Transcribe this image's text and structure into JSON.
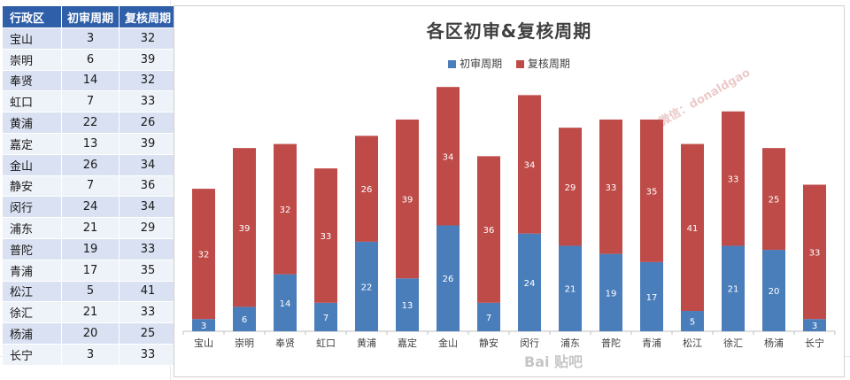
{
  "table": {
    "headers": [
      "行政区",
      "初审周期",
      "复核周期"
    ],
    "rows": [
      [
        "宝山",
        "3",
        "32"
      ],
      [
        "崇明",
        "6",
        "39"
      ],
      [
        "奉贤",
        "14",
        "32"
      ],
      [
        "虹口",
        "7",
        "33"
      ],
      [
        "黄浦",
        "22",
        "26"
      ],
      [
        "嘉定",
        "13",
        "39"
      ],
      [
        "金山",
        "26",
        "34"
      ],
      [
        "静安",
        "7",
        "36"
      ],
      [
        "闵行",
        "24",
        "34"
      ],
      [
        "浦东",
        "21",
        "29"
      ],
      [
        "普陀",
        "19",
        "33"
      ],
      [
        "青浦",
        "17",
        "35"
      ],
      [
        "松江",
        "5",
        "41"
      ],
      [
        "徐汇",
        "21",
        "33"
      ],
      [
        "杨浦",
        "20",
        "25"
      ],
      [
        "长宁",
        "3",
        "33"
      ]
    ]
  },
  "colors": {
    "series1": "#4a7ebb",
    "series2": "#be4b48",
    "header_bg": "#2f5fa8"
  },
  "watermarks": [
    "微信：donaldgao",
    "Bai 贴吧"
  ],
  "chart_data": {
    "type": "bar",
    "stacked": true,
    "title": "各区初审&复核周期",
    "categories": [
      "宝山",
      "崇明",
      "奉贤",
      "虹口",
      "黄浦",
      "嘉定",
      "金山",
      "静安",
      "闵行",
      "浦东",
      "普陀",
      "青浦",
      "松江",
      "徐汇",
      "杨浦",
      "长宁"
    ],
    "series": [
      {
        "name": "初审周期",
        "values": [
          3,
          6,
          14,
          7,
          22,
          13,
          26,
          7,
          24,
          21,
          19,
          17,
          5,
          21,
          20,
          3
        ]
      },
      {
        "name": "复核周期",
        "values": [
          32,
          39,
          32,
          33,
          26,
          39,
          34,
          36,
          34,
          29,
          33,
          35,
          41,
          33,
          25,
          33
        ]
      }
    ],
    "xlabel": "",
    "ylabel": "",
    "ylim": [
      0,
      62
    ],
    "legend_position": "top-center",
    "grid": false
  }
}
